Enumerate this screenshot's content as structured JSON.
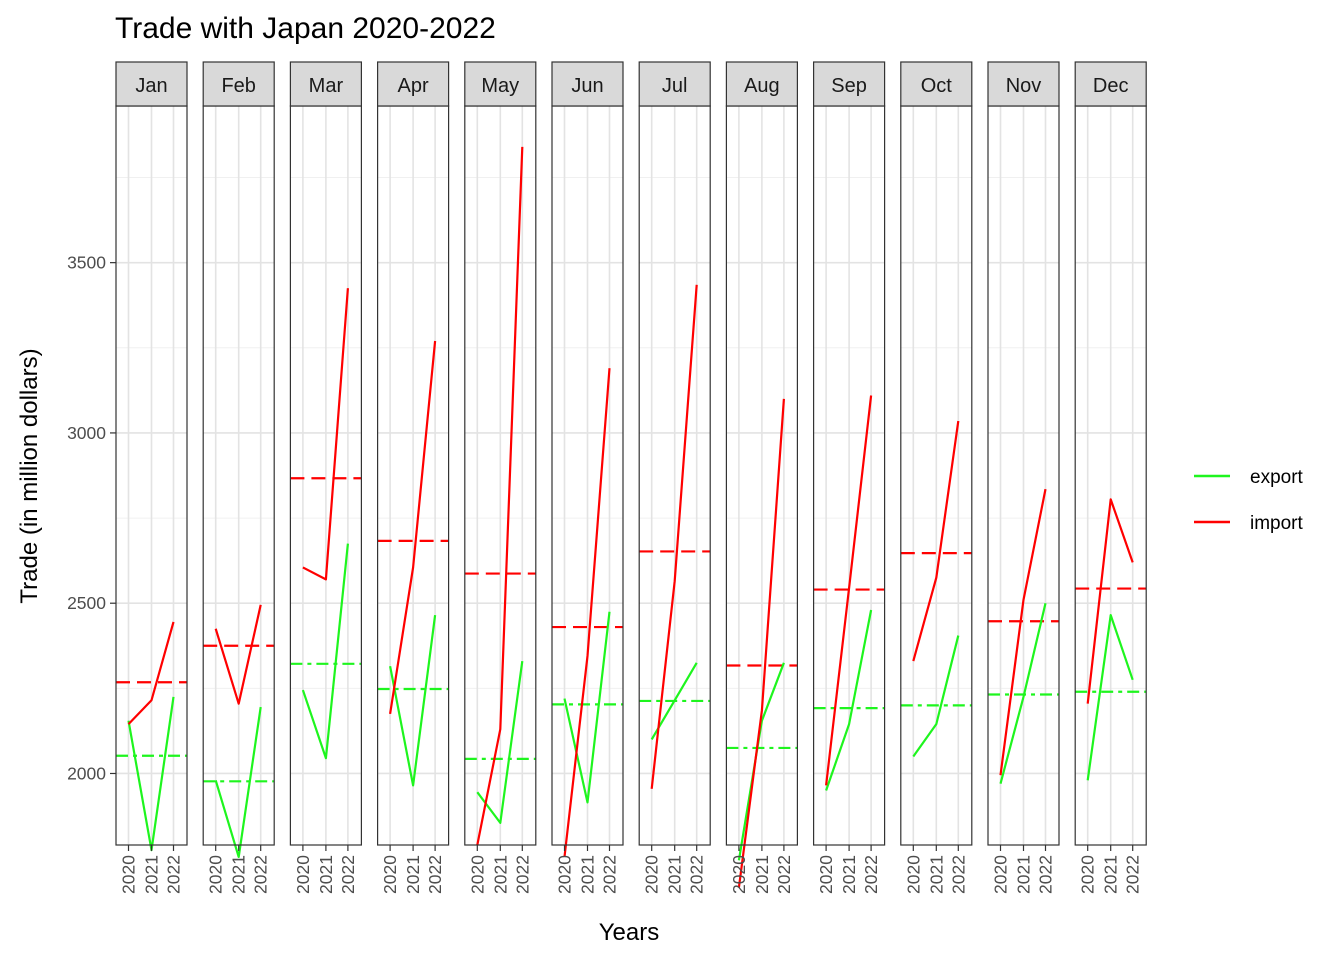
{
  "chart_data": {
    "type": "line",
    "title": "Trade with Japan 2020-2022",
    "xlabel": "Years",
    "ylabel": "Trade (in million dollars)",
    "ylim": [
      1790,
      3960
    ],
    "yticks": [
      2000,
      2500,
      3000,
      3500
    ],
    "x": [
      "2020",
      "2021",
      "2022"
    ],
    "facets": [
      "Jan",
      "Feb",
      "Mar",
      "Apr",
      "May",
      "Jun",
      "Jul",
      "Aug",
      "Sep",
      "Oct",
      "Nov",
      "Dec"
    ],
    "grid": true,
    "legend_position": "right",
    "series": [
      {
        "name": "export",
        "color": "#1ef51e",
        "values": [
          [
            2155,
            1775,
            2225
          ],
          [
            1980,
            1755,
            2195
          ],
          [
            2245,
            2045,
            2675
          ],
          [
            2315,
            1965,
            2465
          ],
          [
            1945,
            1855,
            2330
          ],
          [
            2220,
            1915,
            2475
          ],
          [
            2100,
            2215,
            2325
          ],
          [
            1745,
            2155,
            2325
          ],
          [
            1950,
            2145,
            2480
          ],
          [
            2050,
            2145,
            2405
          ],
          [
            1970,
            2225,
            2500
          ],
          [
            1980,
            2465,
            2275
          ]
        ],
        "means": [
          2052,
          1977,
          2322,
          2248,
          2043,
          2203,
          2213,
          2075,
          2192,
          2200,
          2232,
          2240
        ]
      },
      {
        "name": "import",
        "color": "#ff0000",
        "values": [
          [
            2145,
            2215,
            2445
          ],
          [
            2425,
            2205,
            2495
          ],
          [
            2605,
            2570,
            3425
          ],
          [
            2175,
            2605,
            3270
          ],
          [
            1790,
            2130,
            3840
          ],
          [
            1755,
            2345,
            3190
          ],
          [
            1955,
            2565,
            3435
          ],
          [
            1665,
            2185,
            3100
          ],
          [
            1965,
            2545,
            3110
          ],
          [
            2330,
            2575,
            3035
          ],
          [
            1995,
            2510,
            2835
          ],
          [
            2205,
            2805,
            2620
          ]
        ],
        "means": [
          2268,
          2375,
          2867,
          2683,
          2587,
          2430,
          2652,
          2317,
          2540,
          2647,
          2447,
          2543
        ]
      }
    ]
  }
}
